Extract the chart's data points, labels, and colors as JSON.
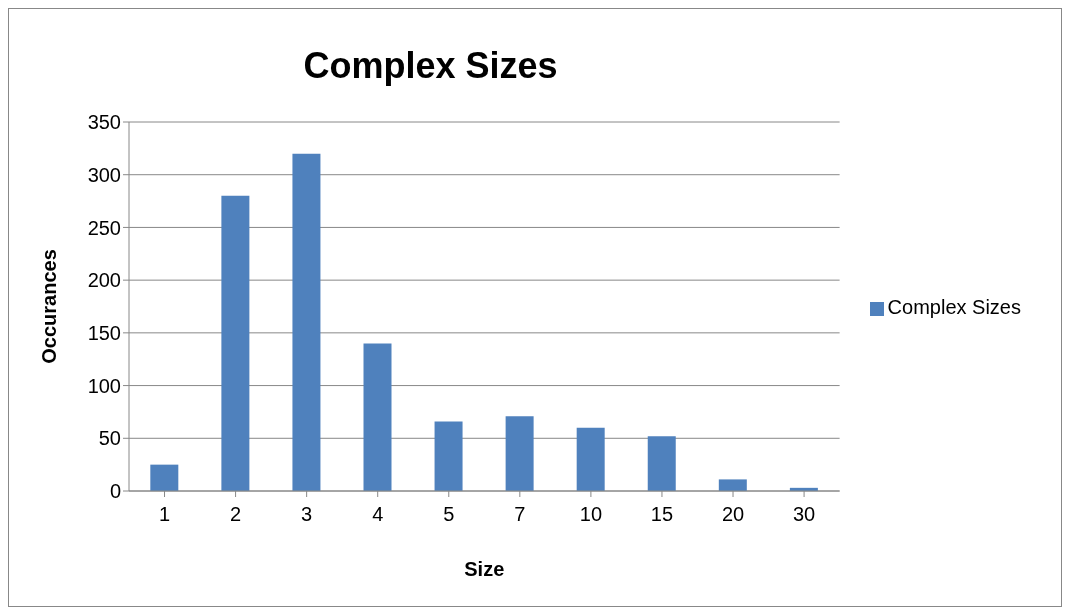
{
  "chart_data": {
    "type": "bar",
    "title": "Complex Sizes",
    "xlabel": "Size",
    "ylabel": "Occurances",
    "categories": [
      "1",
      "2",
      "3",
      "4",
      "5",
      "7",
      "10",
      "15",
      "20",
      "30"
    ],
    "series": [
      {
        "name": "Complex Sizes",
        "color": "#4f81bd",
        "values": [
          25,
          280,
          320,
          140,
          66,
          71,
          60,
          52,
          11,
          3
        ]
      }
    ],
    "ylim": [
      0,
      350
    ],
    "yticks": [
      0,
      50,
      100,
      150,
      200,
      250,
      300,
      350
    ],
    "grid": "y",
    "legend": "right"
  }
}
